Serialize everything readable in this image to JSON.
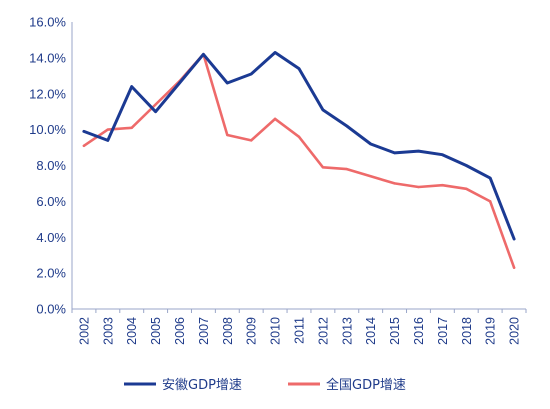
{
  "chart_data": {
    "type": "line",
    "title": "",
    "xlabel": "",
    "ylabel": "",
    "x": [
      "2002",
      "2003",
      "2004",
      "2005",
      "2006",
      "2007",
      "2008",
      "2009",
      "2010",
      "2011",
      "2012",
      "2013",
      "2014",
      "2015",
      "2016",
      "2017",
      "2018",
      "2019",
      "2020"
    ],
    "ylim": [
      0,
      16
    ],
    "y_ticks": [
      "0.0%",
      "2.0%",
      "4.0%",
      "6.0%",
      "8.0%",
      "10.0%",
      "12.0%",
      "14.0%",
      "16.0%"
    ],
    "y_tick_values": [
      0,
      2,
      4,
      6,
      8,
      10,
      12,
      14,
      16
    ],
    "grid": false,
    "legend_position": "bottom",
    "series": [
      {
        "name": "安徽GDP增速",
        "color": "#1b3a93",
        "values": [
          9.9,
          9.4,
          12.4,
          11.0,
          12.6,
          14.2,
          12.6,
          13.1,
          14.3,
          13.4,
          11.1,
          10.2,
          9.2,
          8.7,
          8.8,
          8.6,
          8.0,
          7.3,
          3.9
        ]
      },
      {
        "name": "全国GDP增速",
        "color": "#ee6a6a",
        "values": [
          9.1,
          10.0,
          10.1,
          11.4,
          12.7,
          14.2,
          9.7,
          9.4,
          10.6,
          9.6,
          7.9,
          7.8,
          7.4,
          7.0,
          6.8,
          6.9,
          6.7,
          6.0,
          2.3
        ]
      }
    ]
  }
}
